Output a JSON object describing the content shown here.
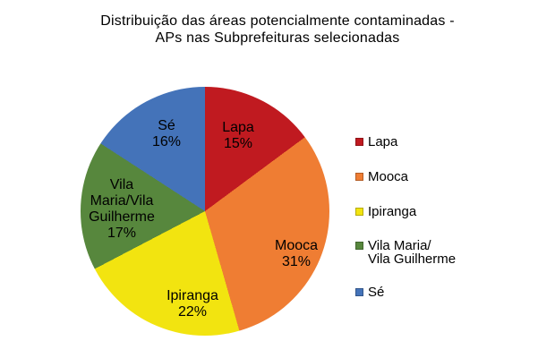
{
  "title": "Distribuição das áreas potencialmente contaminadas -\nAPs nas Subprefeituras selecionadas",
  "chart_data": {
    "type": "pie",
    "title": "Distribuição das áreas potencialmente contaminadas - APs nas Subprefeituras selecionadas",
    "legend_position": "right",
    "start_angle_deg": 0,
    "direction": "clockwise",
    "units": "percent",
    "slices": [
      {
        "name": "Lapa",
        "pct": 15,
        "color": "#C01A20",
        "pie_label": "Lapa\n15%",
        "legend_label": "Lapa"
      },
      {
        "name": "Mooca",
        "pct": 31,
        "color": "#EF7D33",
        "pie_label": "Mooca\n31%",
        "legend_label": "Mooca"
      },
      {
        "name": "Ipiranga",
        "pct": 22,
        "color": "#F2E410",
        "pie_label": "Ipiranga\n22%",
        "legend_label": "Ipiranga"
      },
      {
        "name": "Vila Maria/Vila Guilherme",
        "pct": 17,
        "color": "#57873D",
        "pie_label": "Vila\nMaria/Vila\nGuilherme\n17%",
        "legend_label": "Vila Maria/\nVila Guilherme"
      },
      {
        "name": "Sé",
        "pct": 16,
        "color": "#4473B9",
        "pie_label": "Sé\n16%",
        "legend_label": "Sé"
      }
    ]
  }
}
